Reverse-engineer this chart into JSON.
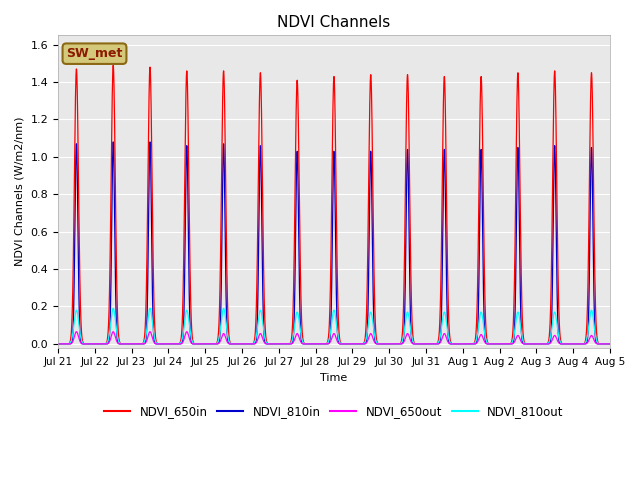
{
  "title": "NDVI Channels",
  "ylabel": "NDVI Channels (W/m2/nm)",
  "xlabel": "Time",
  "ylim": [
    -0.02,
    1.65
  ],
  "background_color": "#e8e8e8",
  "annotation_text": "SW_met",
  "annotation_bg": "#d4c87a",
  "annotation_border": "#8b6914",
  "tick_labels": [
    "Jul 21",
    "Jul 22",
    "Jul 23",
    "Jul 24",
    "Jul 25",
    "Jul 26",
    "Jul 27",
    "Jul 28",
    "Jul 29",
    "Jul 30",
    "Jul 31",
    "Aug 1",
    "Aug 2",
    "Aug 3",
    "Aug 4",
    "Aug 5"
  ],
  "colors": {
    "NDVI_650in": "#ff0000",
    "NDVI_810in": "#0000cc",
    "NDVI_650out": "#ff00ff",
    "NDVI_810out": "#00ffff"
  },
  "peak_650in": [
    1.47,
    1.49,
    1.48,
    1.46,
    1.46,
    1.45,
    1.41,
    1.43,
    1.44,
    1.44,
    1.43,
    1.43,
    1.45,
    1.46,
    1.45
  ],
  "peak_810in": [
    1.07,
    1.08,
    1.08,
    1.06,
    1.07,
    1.06,
    1.03,
    1.03,
    1.03,
    1.04,
    1.04,
    1.04,
    1.05,
    1.06,
    1.05
  ],
  "peak_650out": [
    0.065,
    0.065,
    0.065,
    0.065,
    0.055,
    0.055,
    0.055,
    0.055,
    0.055,
    0.055,
    0.055,
    0.05,
    0.045,
    0.045,
    0.045
  ],
  "peak_810out": [
    0.18,
    0.19,
    0.19,
    0.18,
    0.19,
    0.18,
    0.17,
    0.18,
    0.17,
    0.17,
    0.17,
    0.17,
    0.17,
    0.17,
    0.18
  ],
  "n_days": 15,
  "points_per_day": 500,
  "sigma_650in": 0.055,
  "sigma_810in": 0.04,
  "sigma_650out": 0.055,
  "sigma_810out": 0.065,
  "legend_entries": [
    "NDVI_650in",
    "NDVI_810in",
    "NDVI_650out",
    "NDVI_810out"
  ]
}
